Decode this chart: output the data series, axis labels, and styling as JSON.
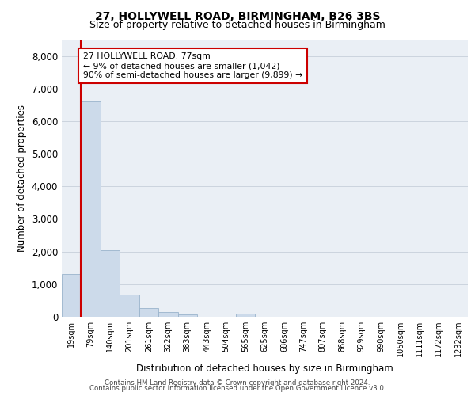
{
  "title1": "27, HOLLYWELL ROAD, BIRMINGHAM, B26 3BS",
  "title2": "Size of property relative to detached houses in Birmingham",
  "xlabel": "Distribution of detached houses by size in Birmingham",
  "ylabel": "Number of detached properties",
  "bar_color": "#ccdaea",
  "bar_edge_color": "#9ab4cc",
  "categories": [
    "19sqm",
    "79sqm",
    "140sqm",
    "201sqm",
    "261sqm",
    "322sqm",
    "383sqm",
    "443sqm",
    "504sqm",
    "565sqm",
    "625sqm",
    "686sqm",
    "747sqm",
    "807sqm",
    "868sqm",
    "929sqm",
    "990sqm",
    "1050sqm",
    "1111sqm",
    "1172sqm",
    "1232sqm"
  ],
  "values": [
    1300,
    6600,
    2050,
    680,
    270,
    140,
    85,
    0,
    0,
    95,
    0,
    0,
    0,
    0,
    0,
    0,
    0,
    0,
    0,
    0,
    0
  ],
  "ylim": [
    0,
    8500
  ],
  "yticks": [
    0,
    1000,
    2000,
    3000,
    4000,
    5000,
    6000,
    7000,
    8000
  ],
  "annotation_text": "27 HOLLYWELL ROAD: 77sqm\n← 9% of detached houses are smaller (1,042)\n90% of semi-detached houses are larger (9,899) →",
  "annotation_box_facecolor": "#ffffff",
  "annotation_box_edgecolor": "#cc0000",
  "vline_color": "#cc0000",
  "vline_x": 0.5,
  "footer1": "Contains HM Land Registry data © Crown copyright and database right 2024.",
  "footer2": "Contains public sector information licensed under the Open Government Licence v3.0.",
  "grid_color": "#ccd4de",
  "bg_color": "#eaeff5"
}
